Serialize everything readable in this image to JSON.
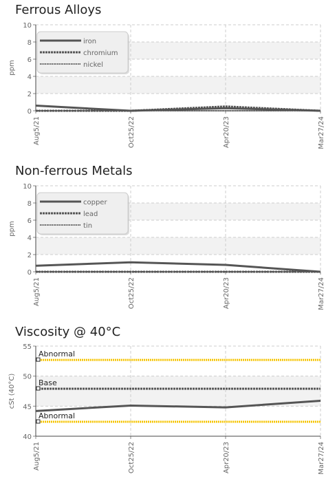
{
  "chart_data": [
    {
      "type": "line",
      "title": "Ferrous Alloys",
      "ylabel": "ppm",
      "ylim": [
        0,
        10
      ],
      "yticks": [
        0,
        2,
        4,
        6,
        8,
        10
      ],
      "categories": [
        "Aug5/21",
        "Oct25/22",
        "Apr20/23",
        "Mar27/24"
      ],
      "grid": true,
      "legend_position": "top-left",
      "series": [
        {
          "name": "iron",
          "style": "solid",
          "values": [
            0.6,
            0.0,
            0.3,
            0.0
          ]
        },
        {
          "name": "chromium",
          "style": "dashed",
          "values": [
            0.0,
            0.0,
            0.5,
            0.0
          ]
        },
        {
          "name": "nickel",
          "style": "dotted",
          "values": [
            0.0,
            0.0,
            0.0,
            0.0
          ]
        }
      ]
    },
    {
      "type": "line",
      "title": "Non-ferrous Metals",
      "ylabel": "ppm",
      "ylim": [
        0,
        10
      ],
      "yticks": [
        0,
        2,
        4,
        6,
        8,
        10
      ],
      "categories": [
        "Aug5/21",
        "Oct25/22",
        "Apr20/23",
        "Mar27/24"
      ],
      "grid": true,
      "legend_position": "top-left",
      "series": [
        {
          "name": "copper",
          "style": "solid",
          "values": [
            0.7,
            1.1,
            0.8,
            0.0
          ]
        },
        {
          "name": "lead",
          "style": "dashed",
          "values": [
            0.0,
            0.0,
            0.0,
            0.0
          ]
        },
        {
          "name": "tin",
          "style": "dotted",
          "values": [
            0.0,
            0.0,
            0.0,
            0.0
          ]
        }
      ]
    },
    {
      "type": "line",
      "title": "Viscosity @ 40°C",
      "ylabel": "cSt (40°C)",
      "ylim": [
        40,
        55
      ],
      "yticks": [
        40,
        45,
        50,
        55
      ],
      "categories": [
        "Aug5/21",
        "Oct25/22",
        "Apr20/23",
        "Mar27/24"
      ],
      "grid": true,
      "series": [
        {
          "name": "",
          "style": "solid",
          "values": [
            44.2,
            45.1,
            44.8,
            45.9
          ]
        }
      ],
      "reference_lines": [
        {
          "label": "Abnormal",
          "value": 52.7,
          "color": "#f5c400",
          "style": "dotted"
        },
        {
          "label": "Base",
          "value": 47.9,
          "color": "#555555",
          "style": "dashed"
        },
        {
          "label": "Abnormal",
          "value": 42.4,
          "color": "#f5c400",
          "style": "dotted"
        }
      ]
    }
  ],
  "colors": {
    "series": "#555555",
    "grid": "#cccccc",
    "band": "#f2f2f2",
    "abnormal": "#f5c400"
  }
}
